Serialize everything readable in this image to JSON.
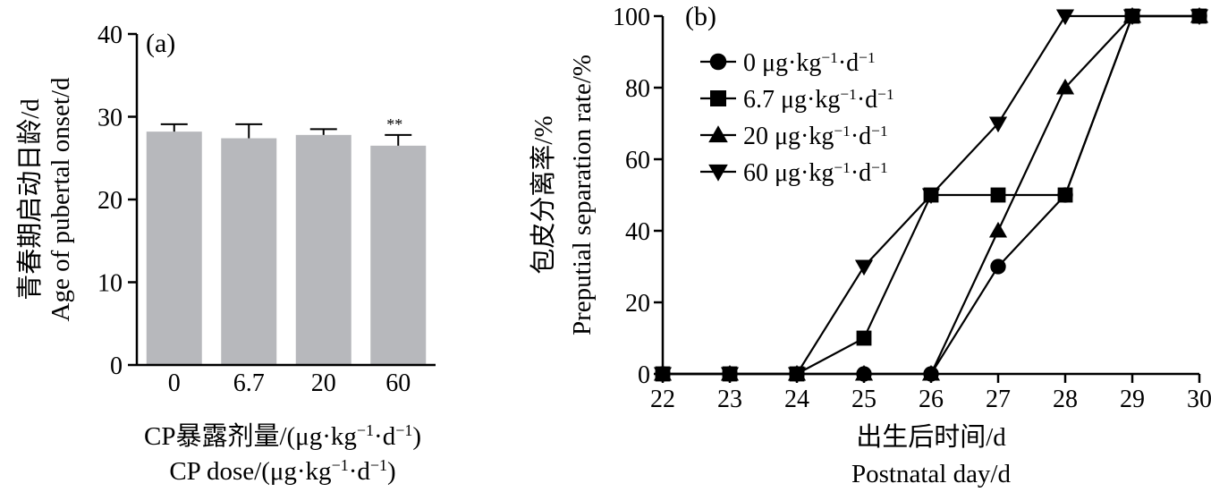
{
  "chart_data": [
    {
      "type": "bar",
      "panel_label": "(a)",
      "categories": [
        "0",
        "6.7",
        "20",
        "60"
      ],
      "values": [
        28.2,
        27.4,
        27.8,
        26.5
      ],
      "errors": [
        0.9,
        1.7,
        0.7,
        1.3
      ],
      "annotations": [
        {
          "category": "60",
          "text": "**"
        }
      ],
      "ylim": [
        0,
        40
      ],
      "yticks": [
        0,
        10,
        20,
        30,
        40
      ],
      "ylabel_cn": "青春期启动日龄/d",
      "ylabel_en": "Age of pubertal onset/d",
      "xlabel_cn": "CP暴露剂量/(μg·kg⁻¹·d⁻¹)",
      "xlabel_en": "CP dose/(μg·kg⁻¹·d⁻¹)",
      "colors": {
        "bar": "#b7b8bc"
      }
    },
    {
      "type": "line",
      "panel_label": "(b)",
      "x": [
        22,
        23,
        24,
        25,
        26,
        27,
        28,
        29,
        30
      ],
      "xlim": [
        22,
        30
      ],
      "ylim": [
        0,
        100
      ],
      "yticks": [
        0,
        20,
        40,
        60,
        80,
        100
      ],
      "xlabel_cn": "出生后时间/d",
      "xlabel_en": "Postnatal day/d",
      "ylabel_cn": "包皮分离率/%",
      "ylabel_en": "Preputial separation rate/%",
      "legend_position": "top-left",
      "series": [
        {
          "name": "0 μg·kg⁻¹·d⁻¹",
          "marker": "circle",
          "values": [
            0,
            0,
            0,
            0,
            0,
            30,
            50,
            100,
            100
          ]
        },
        {
          "name": "6.7 μg·kg⁻¹·d⁻¹",
          "marker": "square",
          "values": [
            0,
            0,
            0,
            10,
            50,
            50,
            50,
            100,
            100
          ]
        },
        {
          "name": "20 μg·kg⁻¹·d⁻¹",
          "marker": "triangle-up",
          "values": [
            0,
            0,
            0,
            0,
            0,
            40,
            80,
            100,
            100
          ]
        },
        {
          "name": "60 μg·kg⁻¹·d⁻¹",
          "marker": "triangle-down",
          "values": [
            0,
            0,
            0,
            30,
            50,
            70,
            100,
            100,
            100
          ]
        }
      ]
    }
  ]
}
